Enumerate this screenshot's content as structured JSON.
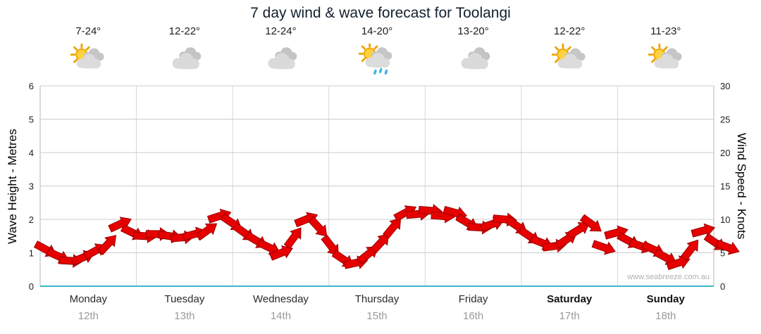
{
  "title": "7 day wind & wave forecast for Toolangi",
  "watermark": "www.seabreeze.com.au",
  "days": [
    {
      "name": "Monday",
      "date": "12th",
      "temp": "7-24°",
      "icon": "sun-cloud",
      "weekend": false
    },
    {
      "name": "Tuesday",
      "date": "13th",
      "temp": "12-22°",
      "icon": "clouds",
      "weekend": false
    },
    {
      "name": "Wednesday",
      "date": "14th",
      "temp": "12-24°",
      "icon": "clouds",
      "weekend": false
    },
    {
      "name": "Thursday",
      "date": "15th",
      "temp": "14-20°",
      "icon": "sun-cloud-rain",
      "weekend": false
    },
    {
      "name": "Friday",
      "date": "16th",
      "temp": "13-20°",
      "icon": "clouds",
      "weekend": false
    },
    {
      "name": "Saturday",
      "date": "17th",
      "temp": "12-22°",
      "icon": "sun-cloud",
      "weekend": true
    },
    {
      "name": "Sunday",
      "date": "18th",
      "temp": "11-23°",
      "icon": "sun-cloud",
      "weekend": true
    }
  ],
  "axes": {
    "left_label": "Wave Height - Metres",
    "left_ticks": [
      0,
      1,
      2,
      3,
      4,
      5,
      6
    ],
    "left_range": [
      0,
      6
    ],
    "right_label": "Wind Speed - Knots",
    "right_ticks": [
      0,
      5,
      10,
      15,
      20,
      25,
      30
    ],
    "right_range": [
      0,
      30
    ]
  },
  "colors": {
    "arrow": "#e60000",
    "arrow_edge": "#990000",
    "baseline": "#3bb9cc",
    "grid": "#cccccc",
    "day_grid": "#d8d8d8",
    "edge_grid": "#b5b5b5"
  },
  "chart_data": {
    "type": "line",
    "title": "7 day wind & wave forecast for Toolangi",
    "marker": "red-wind-arrow",
    "categories": [
      "Monday 12th",
      "Tuesday 13th",
      "Wednesday 14th",
      "Thursday 15th",
      "Friday 16th",
      "Saturday 17th",
      "Sunday 18th"
    ],
    "points_per_day": 8,
    "y_left": {
      "label": "Wave Height - Metres",
      "range": [
        0,
        6
      ]
    },
    "y_right": {
      "label": "Wind Speed - Knots",
      "range": [
        0,
        30
      ]
    },
    "grid": true,
    "series": [
      {
        "name": "Wind speed",
        "unit": "knots",
        "values": [
          5.5,
          4.5,
          3.8,
          4.3,
          5.3,
          6.3,
          9.3,
          8.0,
          7.5,
          7.8,
          7.5,
          7.3,
          7.8,
          8.3,
          10.5,
          9.5,
          8.0,
          6.8,
          5.8,
          5.0,
          7.3,
          10.0,
          8.8,
          6.0,
          4.0,
          3.5,
          4.8,
          6.5,
          8.8,
          11.0,
          10.8,
          11.3,
          10.5,
          11.0,
          9.5,
          8.8,
          9.3,
          10.0,
          9.0,
          7.5,
          6.5,
          6.0,
          7.0,
          8.5,
          9.3,
          5.8,
          8.0,
          6.8,
          6.0,
          5.5,
          4.3,
          3.5,
          5.5,
          8.3,
          6.5,
          5.8
        ]
      }
    ]
  }
}
